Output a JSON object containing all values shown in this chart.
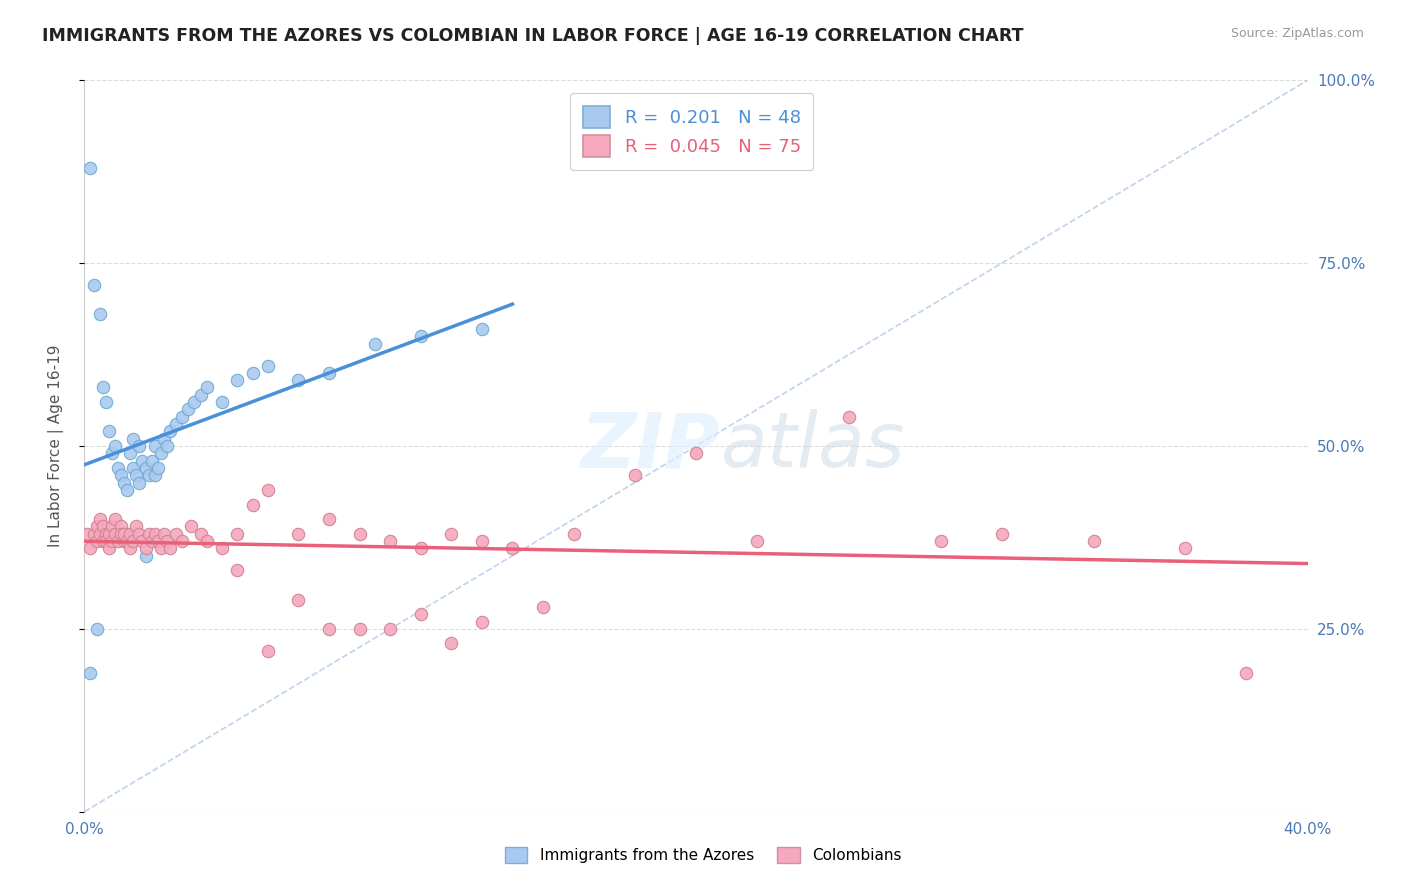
{
  "title": "IMMIGRANTS FROM THE AZORES VS COLOMBIAN IN LABOR FORCE | AGE 16-19 CORRELATION CHART",
  "source": "Source: ZipAtlas.com",
  "ylabel": "In Labor Force | Age 16-19",
  "xlim": [
    0.0,
    0.4
  ],
  "ylim": [
    0.0,
    1.0
  ],
  "xticks": [
    0.0,
    0.05,
    0.1,
    0.15,
    0.2,
    0.25,
    0.3,
    0.35,
    0.4
  ],
  "yticks": [
    0.0,
    0.25,
    0.5,
    0.75,
    1.0
  ],
  "azores_R": 0.201,
  "azores_N": 48,
  "colombian_R": 0.045,
  "colombian_N": 75,
  "azores_color": "#aac9f0",
  "colombian_color": "#f5a8be",
  "azores_line_color": "#4a90d9",
  "colombian_line_color": "#e8607a",
  "background_color": "#ffffff",
  "grid_color": "#dddddd",
  "azores_x": [
    0.002,
    0.003,
    0.005,
    0.006,
    0.007,
    0.008,
    0.009,
    0.01,
    0.011,
    0.012,
    0.013,
    0.014,
    0.015,
    0.016,
    0.016,
    0.017,
    0.018,
    0.018,
    0.019,
    0.02,
    0.021,
    0.022,
    0.023,
    0.023,
    0.024,
    0.025,
    0.026,
    0.027,
    0.028,
    0.03,
    0.032,
    0.034,
    0.036,
    0.038,
    0.04,
    0.045,
    0.05,
    0.055,
    0.06,
    0.07,
    0.08,
    0.095,
    0.11,
    0.13,
    0.002,
    0.004,
    0.015,
    0.02
  ],
  "azores_y": [
    0.88,
    0.72,
    0.68,
    0.58,
    0.56,
    0.52,
    0.49,
    0.5,
    0.47,
    0.46,
    0.45,
    0.44,
    0.49,
    0.51,
    0.47,
    0.46,
    0.45,
    0.5,
    0.48,
    0.47,
    0.46,
    0.48,
    0.5,
    0.46,
    0.47,
    0.49,
    0.51,
    0.5,
    0.52,
    0.53,
    0.54,
    0.55,
    0.56,
    0.57,
    0.58,
    0.56,
    0.59,
    0.6,
    0.61,
    0.59,
    0.6,
    0.64,
    0.65,
    0.66,
    0.19,
    0.25,
    0.38,
    0.35
  ],
  "colombian_x": [
    0.001,
    0.002,
    0.003,
    0.004,
    0.004,
    0.005,
    0.005,
    0.006,
    0.006,
    0.007,
    0.007,
    0.008,
    0.008,
    0.009,
    0.009,
    0.01,
    0.01,
    0.011,
    0.012,
    0.012,
    0.013,
    0.013,
    0.014,
    0.015,
    0.015,
    0.016,
    0.017,
    0.018,
    0.019,
    0.02,
    0.021,
    0.022,
    0.023,
    0.024,
    0.025,
    0.026,
    0.027,
    0.028,
    0.03,
    0.032,
    0.035,
    0.038,
    0.04,
    0.045,
    0.05,
    0.055,
    0.06,
    0.07,
    0.08,
    0.09,
    0.1,
    0.11,
    0.12,
    0.13,
    0.14,
    0.16,
    0.18,
    0.2,
    0.22,
    0.25,
    0.28,
    0.3,
    0.33,
    0.36,
    0.05,
    0.07,
    0.09,
    0.11,
    0.13,
    0.15,
    0.12,
    0.1,
    0.08,
    0.06,
    0.38
  ],
  "colombian_y": [
    0.38,
    0.36,
    0.38,
    0.39,
    0.37,
    0.4,
    0.38,
    0.37,
    0.39,
    0.38,
    0.37,
    0.36,
    0.38,
    0.37,
    0.39,
    0.38,
    0.4,
    0.37,
    0.39,
    0.38,
    0.37,
    0.38,
    0.37,
    0.36,
    0.38,
    0.37,
    0.39,
    0.38,
    0.37,
    0.36,
    0.38,
    0.37,
    0.38,
    0.37,
    0.36,
    0.38,
    0.37,
    0.36,
    0.38,
    0.37,
    0.39,
    0.38,
    0.37,
    0.36,
    0.38,
    0.42,
    0.44,
    0.38,
    0.4,
    0.38,
    0.37,
    0.36,
    0.38,
    0.37,
    0.36,
    0.38,
    0.46,
    0.49,
    0.37,
    0.54,
    0.37,
    0.38,
    0.37,
    0.36,
    0.33,
    0.29,
    0.25,
    0.27,
    0.26,
    0.28,
    0.23,
    0.25,
    0.25,
    0.22,
    0.19
  ]
}
